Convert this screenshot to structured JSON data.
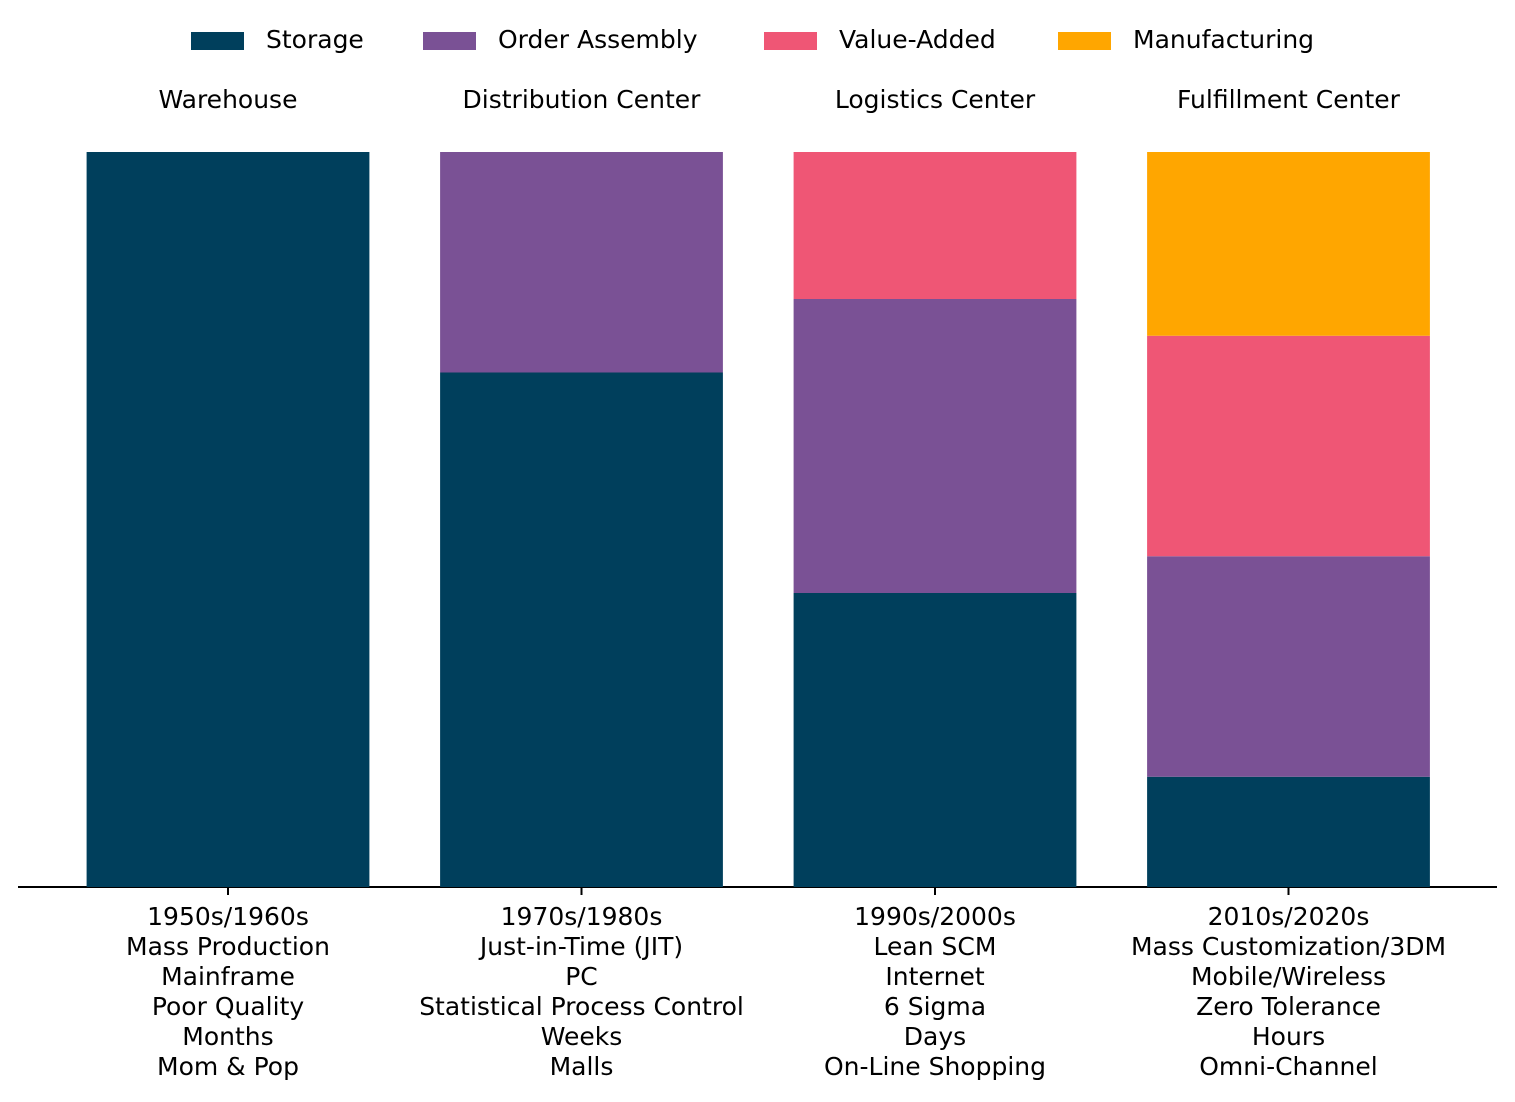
{
  "chart_data": {
    "type": "stacked_bar",
    "top_labels": [
      "Warehouse",
      "Distribution Center",
      "Logistics Center",
      "Fulfillment Center"
    ],
    "categories": [
      [
        "1950s/1960s",
        "Mass Production",
        "Mainframe",
        "Poor Quality",
        "Months",
        "Mom & Pop"
      ],
      [
        "1970s/1980s",
        "Just-in-Time (JIT)",
        "PC",
        "Statistical Process Control",
        "Weeks",
        "Malls"
      ],
      [
        "1990s/2000s",
        "Lean SCM",
        "Internet",
        "6 Sigma",
        "Days",
        "On-Line Shopping"
      ],
      [
        "2010s/2020s",
        "Mass Customization/3DM",
        "Mobile/Wireless",
        "Zero Tolerance",
        "Hours",
        "Omni-Channel"
      ]
    ],
    "series": [
      {
        "name": "Storage",
        "color": "#003f5c",
        "values": [
          1.0,
          0.7,
          0.4,
          0.15
        ]
      },
      {
        "name": "Order Assembly",
        "color": "#7a5195",
        "values": [
          null,
          0.3,
          0.4,
          0.3
        ]
      },
      {
        "name": "Value-Added",
        "color": "#ef5675",
        "values": [
          null,
          null,
          0.2,
          0.3
        ]
      },
      {
        "name": "Manufacturing",
        "color": "#ffa600",
        "values": [
          null,
          null,
          null,
          0.25
        ]
      }
    ],
    "ylim": [
      0,
      1.0
    ],
    "legend": "top"
  }
}
